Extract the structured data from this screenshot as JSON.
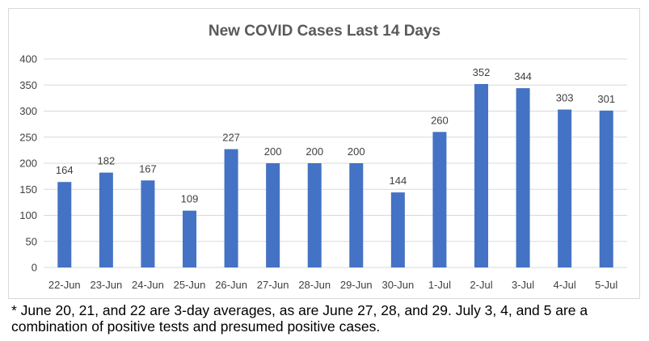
{
  "chart_data": {
    "type": "bar",
    "title": "New COVID Cases Last 14 Days",
    "categories": [
      "22-Jun",
      "23-Jun",
      "24-Jun",
      "25-Jun",
      "26-Jun",
      "27-Jun",
      "28-Jun",
      "29-Jun",
      "30-Jun",
      "1-Jul",
      "2-Jul",
      "3-Jul",
      "4-Jul",
      "5-Jul"
    ],
    "values": [
      164,
      182,
      167,
      109,
      227,
      200,
      200,
      200,
      144,
      260,
      352,
      344,
      303,
      301
    ],
    "ylim": [
      0,
      400
    ],
    "yticks": [
      0,
      50,
      100,
      150,
      200,
      250,
      300,
      350,
      400
    ],
    "xlabel": "",
    "ylabel": "",
    "grid": true,
    "data_labels": true,
    "bar_color": "#4472c4",
    "grid_color": "#d9d9d9",
    "label_color": "#404040"
  },
  "footnote": "* June 20, 21, and 22 are 3-day averages, as are June 27, 28, and 29.  July 3, 4, and 5 are a combination of positive tests and presumed positive cases."
}
